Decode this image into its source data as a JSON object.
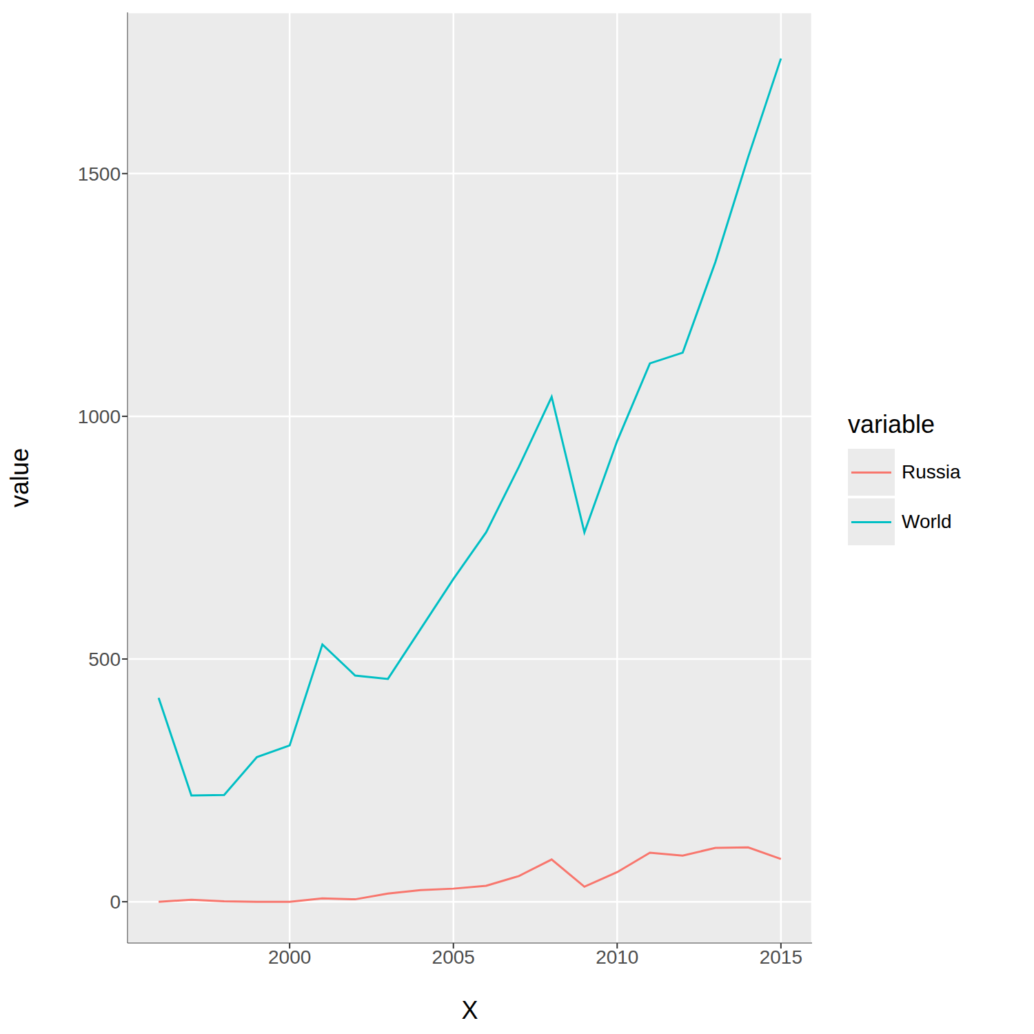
{
  "chart_data": {
    "type": "line",
    "xlabel": "X",
    "ylabel": "value",
    "legend_title": "variable",
    "legend": "right",
    "grid": true,
    "x": [
      1996,
      1997,
      1998,
      1999,
      2000,
      2001,
      2002,
      2003,
      2004,
      2005,
      2006,
      2007,
      2008,
      2009,
      2010,
      2011,
      2012,
      2013,
      2014,
      2015
    ],
    "series": [
      {
        "name": "Russia",
        "color": "#F8766D",
        "values": [
          0,
          4,
          1,
          0,
          0,
          7,
          5,
          17,
          24,
          27,
          33,
          53,
          87,
          31,
          61,
          101,
          95,
          111,
          112,
          88
        ]
      },
      {
        "name": "World",
        "color": "#00BFC4",
        "values": [
          420,
          219,
          220,
          298,
          322,
          530,
          466,
          459,
          562,
          665,
          761,
          896,
          1040,
          761,
          949,
          1109,
          1131,
          1318,
          1534,
          1737
        ]
      }
    ],
    "xlim": [
      1995.05,
      2015.95
    ],
    "xticks": [
      2000,
      2005,
      2010,
      2015
    ],
    "ylim": [
      -85,
      1832
    ],
    "yticks": [
      0,
      500,
      1000,
      1500
    ]
  }
}
